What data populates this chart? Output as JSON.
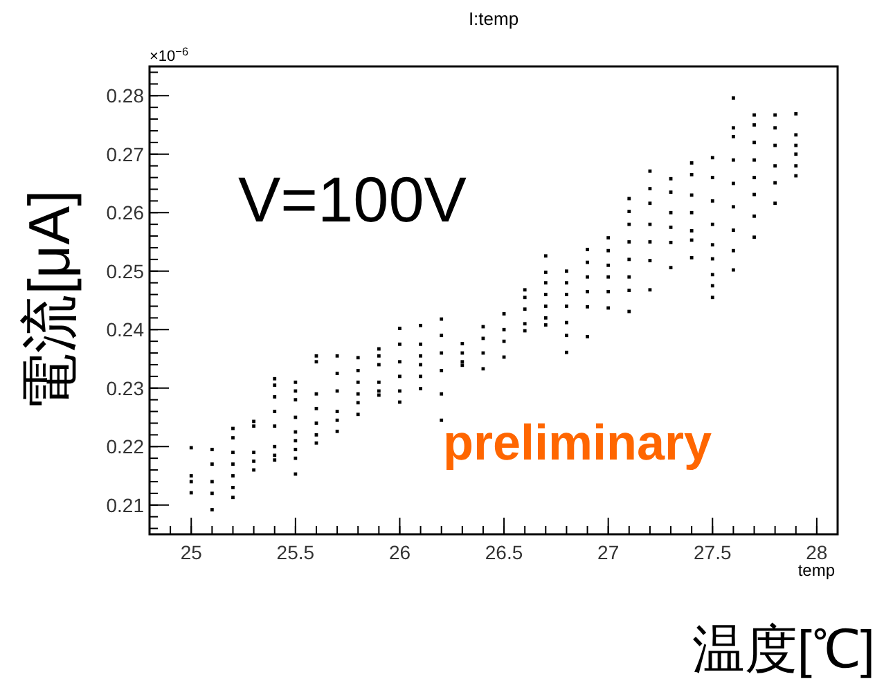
{
  "chart_data": {
    "type": "scatter",
    "title": "I:temp",
    "xlabel": "temp",
    "ylabel": "電流[μA]",
    "annotations": [
      "×10$^{−6}$",
      "V=100V",
      "preliminary",
      "温度[℃]"
    ],
    "xlim": [
      24.8,
      28.1
    ],
    "ylim": [
      0.205,
      0.285
    ],
    "xticks": [
      25,
      25.5,
      26,
      26.5,
      27,
      27.5,
      28
    ],
    "yticks": [
      0.21,
      0.22,
      0.23,
      0.24,
      0.25,
      0.26,
      0.27,
      0.28
    ],
    "grid": false,
    "marker": "square",
    "series": [
      {
        "color": "#000000",
        "x": [
          25,
          25,
          25,
          25,
          25.1,
          25.1,
          25.1,
          25.1,
          25.1,
          25.2,
          25.2,
          25.2,
          25.2,
          25.2,
          25.2,
          25.2,
          25.3,
          25.3,
          25.3,
          25.3,
          25.3,
          25.4,
          25.4,
          25.4,
          25.4,
          25.4,
          25.4,
          25.4,
          25.4,
          25.5,
          25.5,
          25.5,
          25.5,
          25.5,
          25.5,
          25.5,
          25.5,
          25.5,
          25.6,
          25.6,
          25.6,
          25.6,
          25.6,
          25.6,
          25.6,
          25.7,
          25.7,
          25.7,
          25.7,
          25.7,
          25.7,
          25.8,
          25.8,
          25.8,
          25.8,
          25.8,
          25.8,
          25.9,
          25.9,
          25.9,
          25.9,
          25.9,
          25.9,
          26,
          26,
          26,
          26,
          26,
          26,
          26.1,
          26.1,
          26.1,
          26.1,
          26.1,
          26.1,
          26.2,
          26.2,
          26.2,
          26.2,
          26.2,
          26.2,
          26.3,
          26.3,
          26.3,
          26.3,
          26.4,
          26.4,
          26.4,
          26.4,
          26.5,
          26.5,
          26.5,
          26.5,
          26.6,
          26.6,
          26.6,
          26.6,
          26.6,
          26.7,
          26.7,
          26.7,
          26.7,
          26.7,
          26.7,
          26.7,
          26.8,
          26.8,
          26.8,
          26.8,
          26.8,
          26.8,
          26.8,
          26.9,
          26.9,
          26.9,
          26.9,
          26.9,
          26.9,
          27,
          27,
          27,
          27,
          27,
          27,
          27.1,
          27.1,
          27.1,
          27.1,
          27.1,
          27.1,
          27.1,
          27.1,
          27.2,
          27.2,
          27.2,
          27.2,
          27.2,
          27.2,
          27.2,
          27.3,
          27.3,
          27.3,
          27.3,
          27.3,
          27.3,
          27.4,
          27.4,
          27.4,
          27.4,
          27.4,
          27.4,
          27.4,
          27.5,
          27.5,
          27.5,
          27.5,
          27.5,
          27.5,
          27.5,
          27.5,
          27.5,
          27.6,
          27.6,
          27.6,
          27.6,
          27.6,
          27.6,
          27.6,
          27.6,
          27.6,
          27.7,
          27.7,
          27.7,
          27.7,
          27.7,
          27.7,
          27.7,
          27.7,
          27.8,
          27.8,
          27.8,
          27.8,
          27.8,
          27.8,
          27.9,
          27.9,
          27.9,
          27.9,
          27.9,
          27.9
        ],
        "values": [
          0.2198,
          0.215,
          0.214,
          0.2121,
          0.2195,
          0.217,
          0.214,
          0.212,
          0.2092,
          0.2231,
          0.2215,
          0.219,
          0.217,
          0.215,
          0.213,
          0.2113,
          0.2243,
          0.2235,
          0.219,
          0.2175,
          0.216,
          0.2316,
          0.2305,
          0.2285,
          0.226,
          0.2235,
          0.22,
          0.2185,
          0.2177,
          0.231,
          0.2295,
          0.228,
          0.225,
          0.2225,
          0.221,
          0.2195,
          0.218,
          0.2153,
          0.2355,
          0.2345,
          0.229,
          0.2265,
          0.224,
          0.222,
          0.2206,
          0.2355,
          0.2325,
          0.2295,
          0.226,
          0.2245,
          0.2226,
          0.2352,
          0.233,
          0.231,
          0.229,
          0.2275,
          0.2255,
          0.2367,
          0.2355,
          0.234,
          0.231,
          0.2295,
          0.2288,
          0.2402,
          0.2375,
          0.2345,
          0.232,
          0.2295,
          0.2276,
          0.2407,
          0.2375,
          0.2355,
          0.234,
          0.232,
          0.2299,
          0.2418,
          0.239,
          0.236,
          0.233,
          0.229,
          0.2245,
          0.2376,
          0.236,
          0.2345,
          0.2339,
          0.2405,
          0.2385,
          0.236,
          0.2333,
          0.2427,
          0.24,
          0.238,
          0.2353,
          0.2468,
          0.2455,
          0.2435,
          0.241,
          0.2398,
          0.2526,
          0.2498,
          0.248,
          0.246,
          0.244,
          0.242,
          0.2408,
          0.25,
          0.248,
          0.246,
          0.244,
          0.2412,
          0.239,
          0.2361,
          0.2537,
          0.2515,
          0.249,
          0.2465,
          0.2439,
          0.2388,
          0.2557,
          0.2535,
          0.251,
          0.249,
          0.2465,
          0.2437,
          0.2624,
          0.2602,
          0.258,
          0.255,
          0.252,
          0.249,
          0.2467,
          0.2431,
          0.2671,
          0.2641,
          0.2616,
          0.258,
          0.255,
          0.2518,
          0.2468,
          0.2658,
          0.2635,
          0.26,
          0.2575,
          0.2549,
          0.2506,
          0.2685,
          0.2665,
          0.263,
          0.26,
          0.2569,
          0.2553,
          0.2523,
          0.2694,
          0.266,
          0.262,
          0.258,
          0.2545,
          0.2521,
          0.2494,
          0.2475,
          0.2455,
          0.2796,
          0.2745,
          0.273,
          0.269,
          0.265,
          0.261,
          0.257,
          0.2535,
          0.2502,
          0.2767,
          0.275,
          0.272,
          0.269,
          0.266,
          0.2631,
          0.2594,
          0.2558,
          0.2767,
          0.2745,
          0.2715,
          0.268,
          0.2651,
          0.2616,
          0.2769,
          0.2733,
          0.2715,
          0.27,
          0.268,
          0.2663
        ]
      }
    ]
  }
}
